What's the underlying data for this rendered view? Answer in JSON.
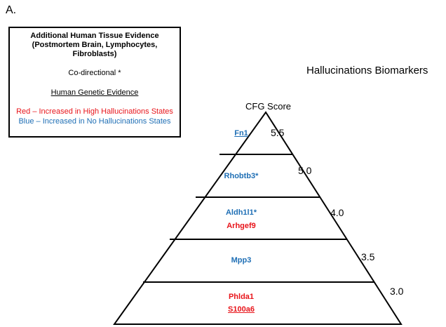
{
  "panel_label": "A.",
  "legend": {
    "title": "Additional Human Tissue Evidence (Postmortem Brain, Lymphocytes, Fibroblasts)",
    "codirectional": "Co-directional *",
    "genetic_evidence": "Human Genetic Evidence",
    "red_line": "Red – Increased in High Hallucinations States",
    "blue_line": "Blue – Increased in No Hallucinations States"
  },
  "title": "Hallucinations Biomarkers",
  "cfg_label": "CFG Score",
  "scores": [
    "5.5",
    "5.0",
    "4.0",
    "3.5",
    "3.0"
  ],
  "genes": {
    "fn1": "Fn1",
    "rhobtb3": "Rhobtb3*",
    "aldh1l1": "Aldh1l1*",
    "arhgef9": "Arhgef9",
    "mpp3": "Mpp3",
    "phlda1": "Phlda1",
    "s100a6": "S100a6"
  },
  "colors": {
    "increased_high": "#e8141a",
    "increased_none": "#1f6fb5"
  }
}
